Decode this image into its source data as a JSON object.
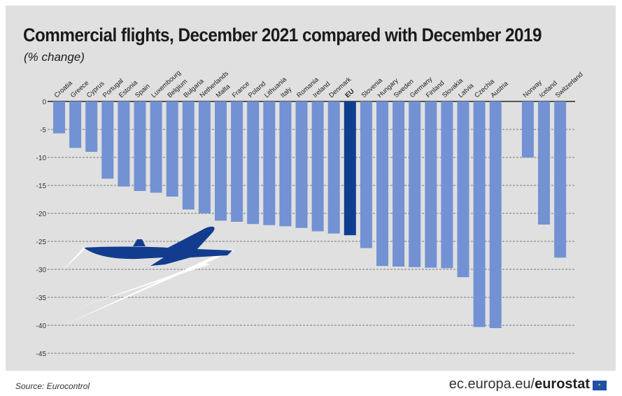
{
  "header": {
    "title": "Commercial flights, December 2021 compared with December 2019",
    "subtitle": "(% change)"
  },
  "footer": {
    "source": "Source: Eurocontrol",
    "site_prefix": "ec.europa.eu/",
    "site_brand": "eurostat"
  },
  "colors": {
    "bar": "#7392d3",
    "highlight": "#0f3e8f",
    "airplane": "#123d8f",
    "grid": "#555555"
  },
  "icons": [
    "airplane-icon",
    "eu-flag-icon"
  ],
  "chart_data": {
    "type": "bar",
    "title": "Commercial flights, December 2021 compared with December 2019",
    "subtitle": "(% change)",
    "xlabel": "",
    "ylabel": "",
    "ylim": [
      -45,
      0
    ],
    "yticks": [
      0,
      -5,
      -10,
      -15,
      -20,
      -25,
      -30,
      -35,
      -40,
      -45
    ],
    "grid": true,
    "highlight": "EU",
    "categories": [
      "Croatia",
      "Greece",
      "Cyprus",
      "Portugal",
      "Estonia",
      "Spain",
      "Luxembourg",
      "Belgium",
      "Bulgaria",
      "Netherlands",
      "Malta",
      "France",
      "Poland",
      "Lithuania",
      "Italy",
      "Romania",
      "Ireland",
      "Denmark",
      "EU",
      "Slovenia",
      "Hungary",
      "Sweden",
      "Germany",
      "Finland",
      "Slovakia",
      "Latvia",
      "Czechia",
      "Austria",
      "",
      "Norway",
      "Iceland",
      "Switzerland"
    ],
    "values": [
      -5.7,
      -8.3,
      -9.0,
      -13.8,
      -15.2,
      -16.0,
      -16.3,
      -17.0,
      -19.3,
      -20.0,
      -21.3,
      -21.5,
      -21.9,
      -22.1,
      -22.3,
      -22.6,
      -23.2,
      -23.6,
      -23.9,
      -26.2,
      -29.4,
      -29.5,
      -29.6,
      -29.7,
      -29.8,
      -31.4,
      -40.3,
      -40.5,
      null,
      -10.0,
      -22.0,
      -27.9
    ]
  }
}
